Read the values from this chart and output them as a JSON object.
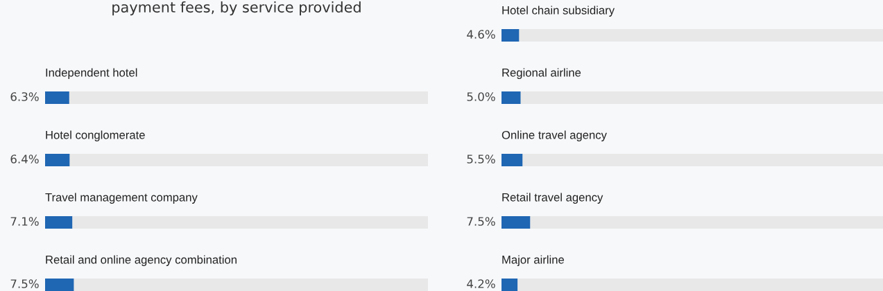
{
  "chart_data": [
    {
      "type": "bar",
      "orientation": "horizontal",
      "title": "payment fees, by service provided",
      "categories": [
        "Independent hotel",
        "Hotel conglomerate",
        "Travel management company",
        "Retail and online agency combination"
      ],
      "values": [
        6.3,
        6.4,
        7.1,
        7.5
      ],
      "value_labels": [
        "6.3%",
        "6.4%",
        "7.1%",
        "7.5%"
      ],
      "color": "#1f66b3",
      "xlim": [
        0,
        100
      ],
      "tick_labels": false
    },
    {
      "type": "bar",
      "orientation": "horizontal",
      "categories": [
        "Hotel chain subsidiary",
        "Regional airline",
        "Online travel agency",
        "Retail travel agency",
        "Major airline"
      ],
      "values": [
        4.6,
        5.0,
        5.5,
        7.5,
        4.2
      ],
      "value_labels": [
        "4.6%",
        "5.0%",
        "5.5%",
        "7.5%",
        "4.2%"
      ],
      "color": "#1f66b3",
      "xlim": [
        0,
        100
      ],
      "tick_labels": false
    }
  ]
}
